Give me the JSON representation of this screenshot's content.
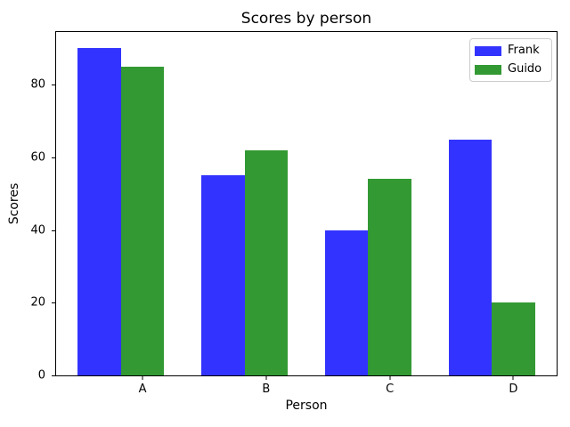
{
  "chart_data": {
    "type": "bar",
    "title": "Scores by person",
    "xlabel": "Person",
    "ylabel": "Scores",
    "categories": [
      "A",
      "B",
      "C",
      "D"
    ],
    "series": [
      {
        "name": "Frank",
        "color": "#3333ff",
        "values": [
          90,
          55,
          40,
          65
        ]
      },
      {
        "name": "Guido",
        "color": "#339933",
        "values": [
          85,
          62,
          54,
          20
        ]
      }
    ],
    "yticks": [
      0,
      20,
      40,
      60,
      80
    ],
    "ylim": [
      0,
      94.5
    ],
    "xlim": [
      -0.35,
      3.7
    ],
    "bar_width": 0.35,
    "series_offset": 0.35,
    "tick_offset": 0.35,
    "grid": false,
    "legend_position": "upper right",
    "background_color": "#ffffff",
    "spine_color": "#000000",
    "legend_border_color": "#cccccc"
  }
}
